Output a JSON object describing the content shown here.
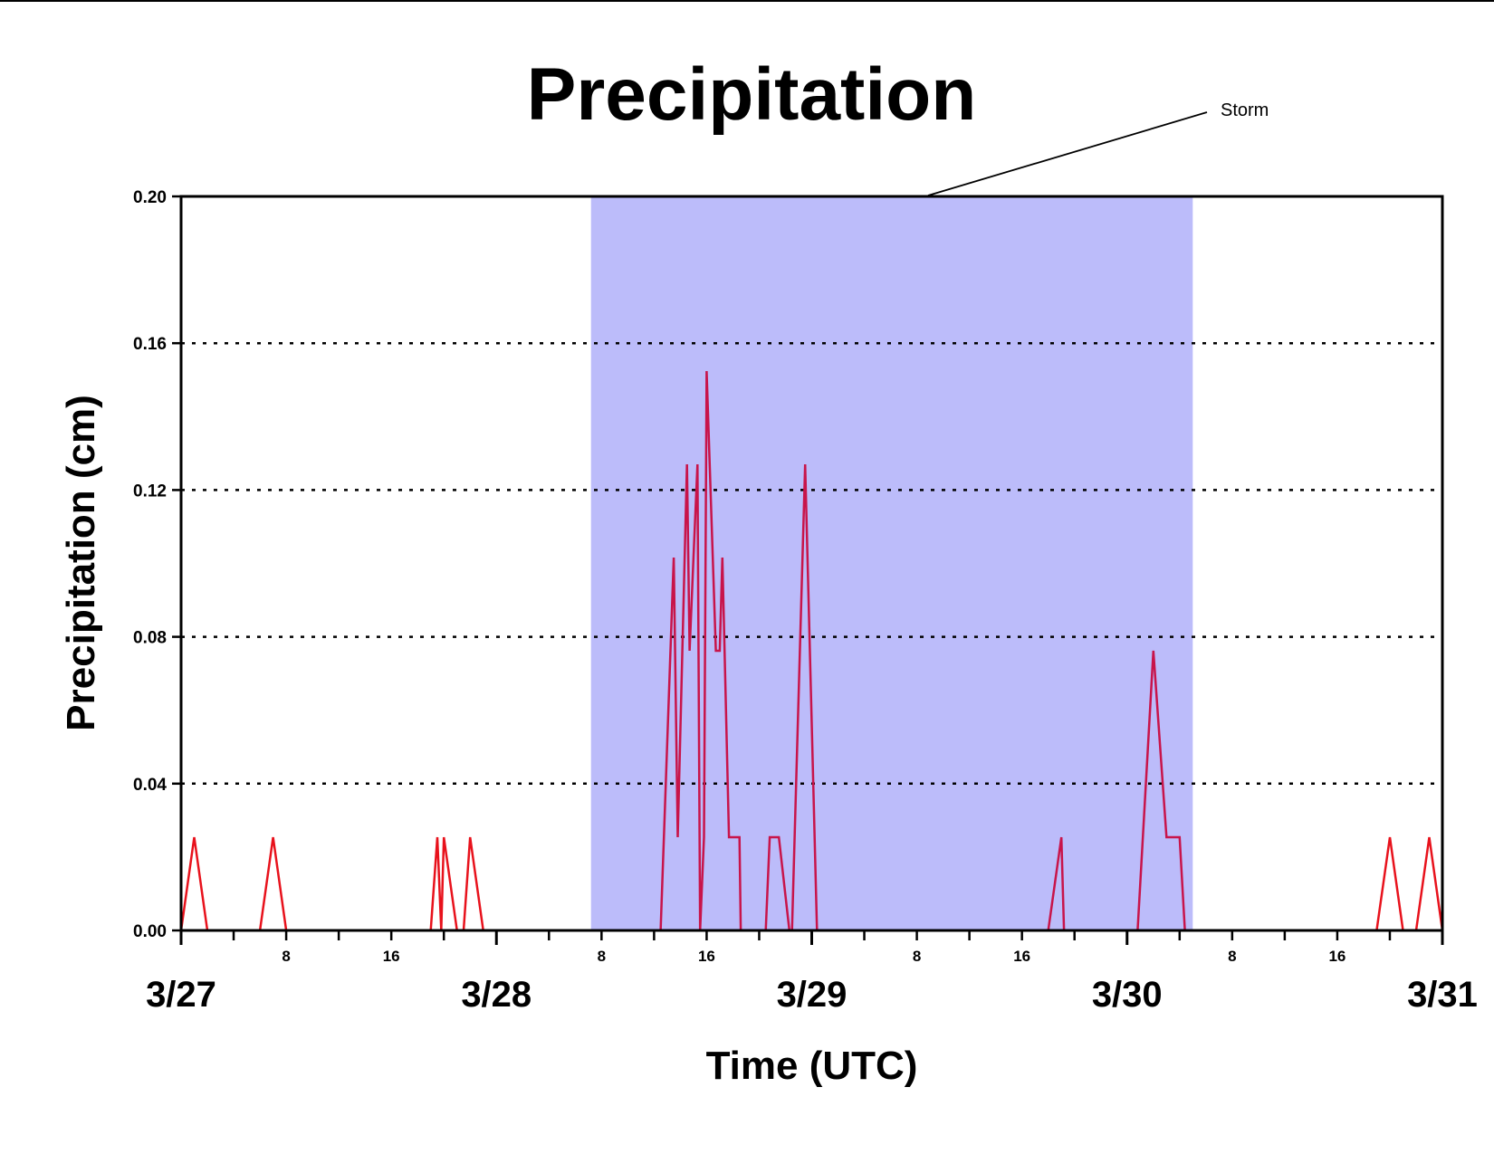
{
  "chart_data": {
    "type": "line",
    "title": "Precipitation",
    "xlabel": "Time (UTC)",
    "ylabel": "Precipitation (cm)",
    "x_unit": "hours",
    "xlim": [
      0,
      96
    ],
    "ylim": [
      0,
      0.2
    ],
    "y_ticks": [
      "0.00",
      "0.04",
      "0.08",
      "0.12",
      "0.16",
      "0.20"
    ],
    "date_ticks": [
      {
        "hour": 0,
        "label": "3/27"
      },
      {
        "hour": 24,
        "label": "3/28"
      },
      {
        "hour": 48,
        "label": "3/29"
      },
      {
        "hour": 72,
        "label": "3/30"
      },
      {
        "hour": 96,
        "label": "3/31"
      }
    ],
    "hour_ticks": [
      {
        "hour": 8,
        "label": "8"
      },
      {
        "hour": 16,
        "label": "16"
      },
      {
        "hour": 32,
        "label": "8"
      },
      {
        "hour": 40,
        "label": "16"
      },
      {
        "hour": 56,
        "label": "8"
      },
      {
        "hour": 64,
        "label": "16"
      },
      {
        "hour": 80,
        "label": "8"
      },
      {
        "hour": 88,
        "label": "16"
      }
    ],
    "minor_tick_every_hours": 4,
    "grid": "horizontal dotted",
    "shaded_region": {
      "x_start": 31.2,
      "x_end": 77,
      "label": "Storm",
      "color": "#bcbcfa"
    },
    "series": [
      {
        "color_outside": "#e8121c",
        "color_inside": "#c8144a",
        "points": [
          [
            0,
            0
          ],
          [
            1,
            0.0254
          ],
          [
            2,
            0
          ],
          [
            6,
            0
          ],
          [
            7,
            0.0254
          ],
          [
            8,
            0
          ],
          [
            19,
            0
          ],
          [
            19.5,
            0.0254
          ],
          [
            19.8,
            0
          ],
          [
            20,
            0.0254
          ],
          [
            21,
            0
          ],
          [
            21.5,
            0
          ],
          [
            22,
            0.0254
          ],
          [
            23,
            0
          ],
          [
            31,
            0
          ],
          [
            36.5,
            0
          ],
          [
            37.5,
            0.1016
          ],
          [
            37.8,
            0.0254
          ],
          [
            38.5,
            0.127
          ],
          [
            38.7,
            0.0762
          ],
          [
            39,
            0.1016
          ],
          [
            39.3,
            0.127
          ],
          [
            39.5,
            0
          ],
          [
            39.8,
            0.0254
          ],
          [
            40,
            0.1524
          ],
          [
            40.7,
            0.0762
          ],
          [
            41,
            0.0762
          ],
          [
            41.2,
            0.1016
          ],
          [
            41.7,
            0.0254
          ],
          [
            42.5,
            0.0254
          ],
          [
            42.6,
            0
          ],
          [
            44.5,
            0
          ],
          [
            44.8,
            0.0254
          ],
          [
            45.5,
            0.0254
          ],
          [
            46.3,
            0
          ],
          [
            46.5,
            0
          ],
          [
            47.5,
            0.127
          ],
          [
            48.4,
            0
          ],
          [
            66,
            0
          ],
          [
            67,
            0.0254
          ],
          [
            67.2,
            0
          ],
          [
            72.8,
            0
          ],
          [
            74,
            0.0762
          ],
          [
            75,
            0.0254
          ],
          [
            76,
            0.0254
          ],
          [
            76.4,
            0
          ],
          [
            91,
            0
          ],
          [
            92,
            0.0254
          ],
          [
            93,
            0
          ],
          [
            94,
            0
          ],
          [
            95,
            0.0254
          ],
          [
            96,
            0
          ]
        ]
      }
    ]
  }
}
